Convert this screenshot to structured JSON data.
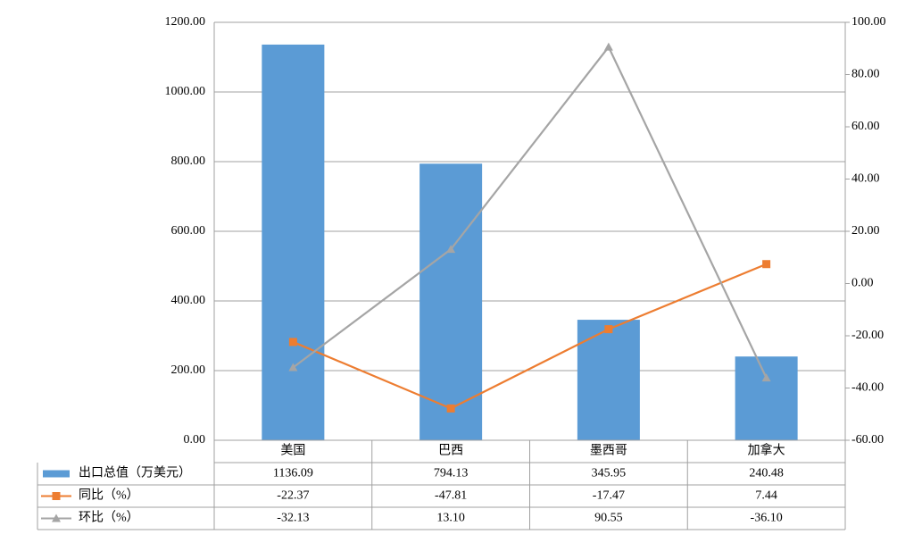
{
  "chart_data": {
    "type": "bar-line",
    "categories": [
      "美国",
      "巴西",
      "墨西哥",
      "加拿大"
    ],
    "series": [
      {
        "name": "出口总值（万美元）",
        "type": "bar",
        "color": "#5b9bd5",
        "values": [
          1136.09,
          794.13,
          345.95,
          240.48
        ],
        "value_labels": [
          "1136.09",
          "794.13",
          "345.95",
          "240.48"
        ]
      },
      {
        "name": "同比（%）",
        "type": "line",
        "axis": "y2",
        "marker": "square",
        "color": "#ed7d31",
        "values": [
          -22.37,
          -47.81,
          -17.47,
          7.44
        ],
        "value_labels": [
          "-22.37",
          "-47.81",
          "-17.47",
          "7.44"
        ]
      },
      {
        "name": "环比（%）",
        "type": "line",
        "axis": "y2",
        "marker": "triangle",
        "color": "#a5a5a5",
        "values": [
          -32.13,
          13.1,
          90.55,
          -36.1
        ],
        "value_labels": [
          "-32.13",
          "13.10",
          "90.55",
          "-36.10"
        ]
      }
    ],
    "ylim": [
      0,
      1200
    ],
    "yticks": [
      {
        "value": 0,
        "label": "0.00"
      },
      {
        "value": 200,
        "label": "200.00"
      },
      {
        "value": 400,
        "label": "400.00"
      },
      {
        "value": 600,
        "label": "600.00"
      },
      {
        "value": 800,
        "label": "800.00"
      },
      {
        "value": 1000,
        "label": "1000.00"
      },
      {
        "value": 1200,
        "label": "1200.00"
      }
    ],
    "y2lim": [
      -60,
      100
    ],
    "y2ticks": [
      {
        "value": -60,
        "label": "-60.00"
      },
      {
        "value": -40,
        "label": "-40.00"
      },
      {
        "value": -20,
        "label": "-20.00"
      },
      {
        "value": 0,
        "label": "0.00"
      },
      {
        "value": 20,
        "label": "20.00"
      },
      {
        "value": 40,
        "label": "40.00"
      },
      {
        "value": 60,
        "label": "60.00"
      },
      {
        "value": 80,
        "label": "80.00"
      },
      {
        "value": 100,
        "label": "100.00"
      }
    ],
    "grid": true,
    "legend": "data-table"
  }
}
